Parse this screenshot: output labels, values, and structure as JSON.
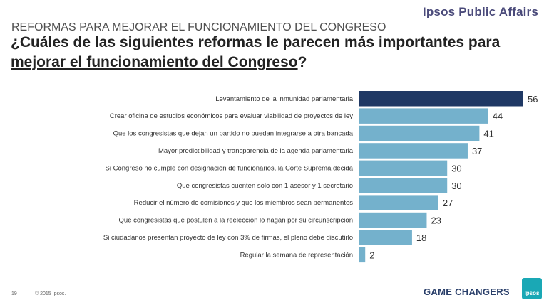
{
  "header": {
    "brand": "Ipsos Public Affairs",
    "supertitle": "REFORMAS PARA MEJORAR EL FUNCIONAMIENTO DEL CONGRESO",
    "question_part1": "¿Cuáles de las siguientes reformas le parecen más importantes para ",
    "question_underlined": "mejorar el funcionamiento del Congreso",
    "question_end": "?"
  },
  "footer": {
    "page": "19",
    "copyright": "© 2015 Ipsos.",
    "tagline": "GAME CHANGERS",
    "logo_text": "Ipsos"
  },
  "chart_data": {
    "type": "bar",
    "orientation": "horizontal",
    "categories": [
      "Levantamiento de la inmunidad parlamentaria",
      "Crear oficina de estudios económicos para evaluar viabilidad de proyectos de ley",
      "Que los congresistas que dejan un partido no puedan integrarse a otra bancada",
      "Mayor predictibilidad y transparencia de la agenda parlamentaria",
      "Si Congreso no cumple con designación de funcionarios, la Corte Suprema decida",
      "Que congresistas cuenten solo con 1 asesor y 1 secretario",
      "Reducir el número de comisiones y que los miembros sean permanentes",
      "Que congresistas que postulen a la reelección lo hagan por su circunscripción",
      "Si ciudadanos presentan proyecto de ley con 3% de firmas, el pleno debe discutirlo",
      "Regular la semana de representación"
    ],
    "values": [
      56,
      44,
      41,
      37,
      30,
      30,
      27,
      23,
      18,
      2
    ],
    "highlight_color": "#1f3864",
    "bar_color": "#74b1cc",
    "xlim": [
      0,
      56
    ],
    "grid": false,
    "legend": "none"
  }
}
